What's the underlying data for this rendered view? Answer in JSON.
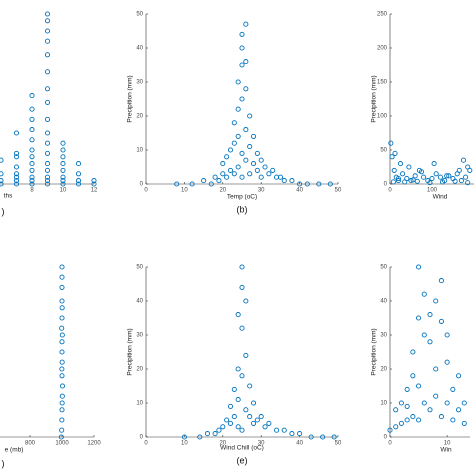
{
  "chart_data": [
    {
      "type": "scatter",
      "color": "#0072bd",
      "xlabel": "ths",
      "panel_label": ")",
      "xlim": [
        0,
        12
      ],
      "ylim": [
        0,
        50
      ],
      "xticks": [
        8,
        10,
        12
      ],
      "x": [
        6,
        6,
        6,
        6,
        7,
        7,
        7,
        7,
        7,
        7,
        7,
        7,
        8,
        8,
        8,
        8,
        8,
        8,
        8,
        8,
        8,
        8,
        8,
        8,
        9,
        9,
        9,
        9,
        9,
        9,
        9,
        9,
        9,
        9,
        9,
        9,
        9,
        9,
        9,
        9,
        9,
        10,
        10,
        10,
        10,
        10,
        10,
        10,
        10,
        11,
        11,
        11,
        11,
        12,
        12
      ],
      "y": [
        0,
        1,
        3,
        7,
        0,
        1,
        2,
        3,
        5,
        8,
        9,
        15,
        0,
        1,
        2,
        4,
        6,
        8,
        10,
        13,
        16,
        19,
        22,
        26,
        0,
        1,
        2,
        4,
        6,
        9,
        12,
        15,
        19,
        24,
        28,
        33,
        38,
        42,
        45,
        48,
        50,
        0,
        1,
        2,
        4,
        6,
        8,
        10,
        12,
        0,
        1,
        3,
        6,
        0,
        1
      ]
    },
    {
      "type": "scatter",
      "color": "#0072bd",
      "xlabel": "Temp (oC)",
      "ylabel": "Precipition (mm)",
      "panel_label": "(b)",
      "xlim": [
        0,
        50
      ],
      "ylim": [
        0,
        50
      ],
      "xticks": [
        0,
        10,
        20,
        30,
        40,
        50
      ],
      "yticks": [
        0,
        10,
        20,
        30,
        40,
        50
      ],
      "x": [
        8,
        12,
        15,
        17,
        18,
        19,
        20,
        20,
        21,
        21,
        22,
        22,
        23,
        23,
        23,
        24,
        24,
        24,
        24,
        25,
        25,
        25,
        25,
        25,
        26,
        26,
        26,
        26,
        27,
        27,
        27,
        28,
        28,
        29,
        29,
        30,
        30,
        31,
        32,
        33,
        34,
        35,
        36,
        38,
        40,
        42,
        45,
        48,
        25,
        26
      ],
      "y": [
        0,
        0,
        1,
        0,
        2,
        1,
        3,
        6,
        2,
        8,
        4,
        10,
        3,
        12,
        18,
        5,
        14,
        22,
        30,
        2,
        9,
        25,
        35,
        44,
        7,
        16,
        28,
        47,
        3,
        11,
        20,
        6,
        14,
        4,
        9,
        2,
        7,
        5,
        3,
        4,
        2,
        2,
        1,
        1,
        0,
        0,
        0,
        0,
        40,
        36
      ]
    },
    {
      "type": "scatter",
      "color": "#0072bd",
      "xlabel": "Wind",
      "ylabel": "Precipition (mm)",
      "xlim": [
        0,
        250
      ],
      "ylim": [
        0,
        250
      ],
      "xticks": [
        0,
        100
      ],
      "yticks": [
        0,
        50,
        100,
        150,
        200,
        250
      ],
      "x": [
        2,
        5,
        10,
        15,
        20,
        25,
        30,
        40,
        50,
        60,
        70,
        80,
        90,
        100,
        110,
        120,
        130,
        140,
        150,
        160,
        170,
        180,
        190,
        185,
        8,
        35,
        65,
        95,
        125,
        155,
        185,
        12,
        45,
        75,
        105,
        135,
        165,
        175,
        20,
        55
      ],
      "y": [
        60,
        40,
        20,
        10,
        5,
        30,
        15,
        8,
        5,
        12,
        20,
        10,
        5,
        8,
        15,
        10,
        5,
        12,
        8,
        15,
        5,
        10,
        20,
        25,
        3,
        3,
        4,
        2,
        3,
        4,
        2,
        45,
        25,
        18,
        30,
        12,
        20,
        35,
        8,
        6
      ]
    },
    {
      "type": "scatter",
      "color": "#0072bd",
      "xlabel": "e (mb)",
      "panel_label": ")",
      "xlim": [
        0,
        1200
      ],
      "ylim": [
        0,
        50
      ],
      "xticks": [
        800,
        1000,
        1200
      ],
      "x": [
        996,
        998,
        999,
        1000,
        1001,
        1002,
        1003,
        1000,
        999,
        1001,
        1000,
        1000,
        1002,
        998,
        1000,
        1001,
        1000,
        1000,
        1000,
        1000
      ],
      "y": [
        0,
        2,
        5,
        8,
        10,
        12,
        15,
        18,
        20,
        22,
        25,
        28,
        30,
        32,
        35,
        38,
        40,
        44,
        47,
        50
      ]
    },
    {
      "type": "scatter",
      "color": "#0072bd",
      "xlabel": "Wind Chill (oC)",
      "ylabel": "Precipition (mm)",
      "panel_label": "(e)",
      "xlim": [
        0,
        50
      ],
      "ylim": [
        0,
        50
      ],
      "xticks": [
        0,
        10,
        20,
        30,
        40,
        50
      ],
      "yticks": [
        0,
        10,
        20,
        30,
        40,
        50
      ],
      "x": [
        10,
        14,
        16,
        18,
        19,
        20,
        21,
        22,
        22,
        23,
        23,
        24,
        24,
        24,
        25,
        25,
        25,
        25,
        26,
        26,
        26,
        27,
        27,
        28,
        28,
        29,
        30,
        31,
        32,
        34,
        36,
        38,
        40,
        43,
        46,
        49,
        25,
        24
      ],
      "y": [
        0,
        0,
        1,
        1,
        2,
        3,
        5,
        4,
        9,
        6,
        14,
        3,
        11,
        20,
        2,
        18,
        32,
        44,
        8,
        24,
        40,
        6,
        15,
        4,
        10,
        5,
        6,
        3,
        4,
        2,
        2,
        1,
        1,
        0,
        0,
        0,
        50,
        36
      ]
    },
    {
      "type": "scatter",
      "color": "#0072bd",
      "xlabel": "Win",
      "ylabel": "Precipition (mm)",
      "xlim": [
        0,
        14
      ],
      "ylim": [
        0,
        50
      ],
      "xticks": [
        0,
        10
      ],
      "yticks": [
        0,
        10,
        20,
        30,
        40,
        50
      ],
      "x": [
        0,
        1,
        1,
        2,
        2,
        3,
        3,
        3,
        4,
        4,
        4,
        5,
        5,
        5,
        5,
        6,
        6,
        6,
        7,
        7,
        7,
        8,
        8,
        8,
        9,
        9,
        9,
        10,
        10,
        10,
        11,
        11,
        12,
        12,
        13,
        13
      ],
      "y": [
        2,
        3,
        8,
        4,
        10,
        5,
        9,
        14,
        6,
        18,
        25,
        5,
        15,
        35,
        50,
        10,
        30,
        42,
        8,
        28,
        36,
        12,
        20,
        40,
        6,
        34,
        46,
        10,
        22,
        30,
        5,
        14,
        8,
        18,
        4,
        10
      ]
    }
  ]
}
